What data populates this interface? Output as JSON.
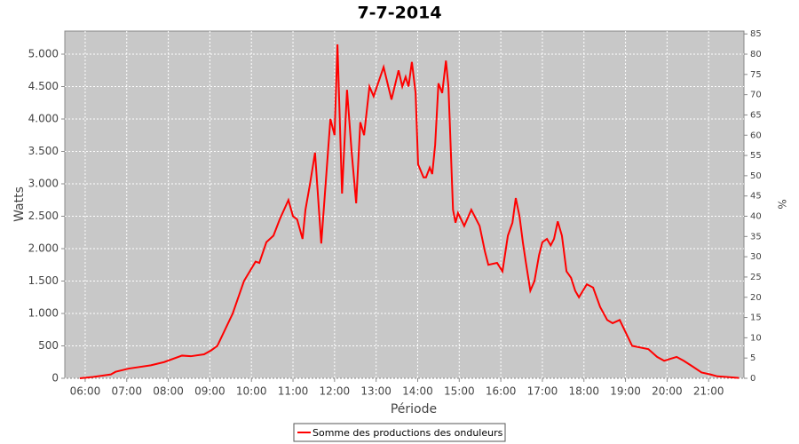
{
  "chart_data": {
    "type": "line",
    "title": "7-7-2014",
    "xlabel": "Période",
    "ylabel": "Watts",
    "y2label": "%",
    "x": [
      5.87,
      6.19,
      6.62,
      6.73,
      7.05,
      7.58,
      7.9,
      8.33,
      8.54,
      8.86,
      9.03,
      9.18,
      9.55,
      9.82,
      10.1,
      10.19,
      10.36,
      10.53,
      10.68,
      10.89,
      11.0,
      11.1,
      11.23,
      11.3,
      11.41,
      11.53,
      11.68,
      11.9,
      12.0,
      12.07,
      12.18,
      12.3,
      12.41,
      12.52,
      12.62,
      12.71,
      12.84,
      12.94,
      13.18,
      13.37,
      13.54,
      13.63,
      13.71,
      13.78,
      13.86,
      13.95,
      14.01,
      14.14,
      14.2,
      14.29,
      14.35,
      14.42,
      14.5,
      14.59,
      14.68,
      14.74,
      14.85,
      14.91,
      14.97,
      15.12,
      15.29,
      15.49,
      15.62,
      15.7,
      15.91,
      16.04,
      16.17,
      16.28,
      16.36,
      16.45,
      16.53,
      16.6,
      16.71,
      16.81,
      16.92,
      17.0,
      17.11,
      17.2,
      17.28,
      17.37,
      17.47,
      17.58,
      17.69,
      17.79,
      17.88,
      18.07,
      18.22,
      18.39,
      18.56,
      18.69,
      18.86,
      19.01,
      19.16,
      19.55,
      19.76,
      19.93,
      20.08,
      20.23,
      20.4,
      20.62,
      20.83,
      21.04,
      21.21,
      21.43,
      21.73
    ],
    "series": [
      {
        "name": "Somme des productions des onduleurs",
        "color": "#ff0000",
        "values": [
          0,
          20,
          60,
          100,
          150,
          200,
          250,
          350,
          340,
          370,
          430,
          500,
          1000,
          1500,
          1800,
          1780,
          2100,
          2200,
          2450,
          2750,
          2500,
          2450,
          2150,
          2600,
          3000,
          3480,
          2080,
          4000,
          3750,
          5150,
          2850,
          4450,
          3500,
          2700,
          3950,
          3750,
          4500,
          4350,
          4800,
          4300,
          4750,
          4500,
          4650,
          4500,
          4880,
          4400,
          3300,
          3100,
          3100,
          3250,
          3150,
          3600,
          4550,
          4400,
          4900,
          4500,
          2600,
          2400,
          2550,
          2350,
          2600,
          2350,
          1950,
          1750,
          1780,
          1650,
          2200,
          2400,
          2780,
          2500,
          2100,
          1800,
          1350,
          1500,
          1900,
          2100,
          2150,
          2050,
          2150,
          2420,
          2200,
          1650,
          1550,
          1350,
          1250,
          1450,
          1400,
          1100,
          900,
          850,
          900,
          700,
          500,
          450,
          330,
          270,
          300,
          330,
          270,
          180,
          90,
          60,
          30,
          20,
          5
        ]
      }
    ],
    "xlim": [
      5.51,
      21.85
    ],
    "xticks": [
      {
        "value": 6,
        "label": "06:00"
      },
      {
        "value": 7,
        "label": "07:00"
      },
      {
        "value": 8,
        "label": "08:00"
      },
      {
        "value": 9,
        "label": "09:00"
      },
      {
        "value": 10,
        "label": "10:00"
      },
      {
        "value": 11,
        "label": "11:00"
      },
      {
        "value": 12,
        "label": "12:00"
      },
      {
        "value": 13,
        "label": "13:00"
      },
      {
        "value": 14,
        "label": "14:00"
      },
      {
        "value": 15,
        "label": "15:00"
      },
      {
        "value": 16,
        "label": "16:00"
      },
      {
        "value": 17,
        "label": "17:00"
      },
      {
        "value": 18,
        "label": "18:00"
      },
      {
        "value": 19,
        "label": "19:00"
      },
      {
        "value": 20,
        "label": "20:00"
      },
      {
        "value": 21,
        "label": "21:00"
      }
    ],
    "ylim": [
      0,
      5356
    ],
    "yticks": [
      0,
      500,
      {
        "value": 1000,
        "label": "1.000"
      },
      {
        "value": 1500,
        "label": "1.500"
      },
      {
        "value": 2000,
        "label": "2.000"
      },
      {
        "value": 2500,
        "label": "2.500"
      },
      {
        "value": 3000,
        "label": "3.000"
      },
      {
        "value": 3500,
        "label": "3.500"
      },
      {
        "value": 4000,
        "label": "4.000"
      },
      {
        "value": 4500,
        "label": "4.500"
      },
      {
        "value": 5000,
        "label": "5.000"
      }
    ],
    "y2lim": [
      0,
      85.7
    ],
    "y2ticks": [
      0,
      5,
      10,
      15,
      20,
      25,
      30,
      35,
      40,
      45,
      50,
      55,
      60,
      65,
      70,
      75,
      80,
      85
    ],
    "grid": true
  }
}
